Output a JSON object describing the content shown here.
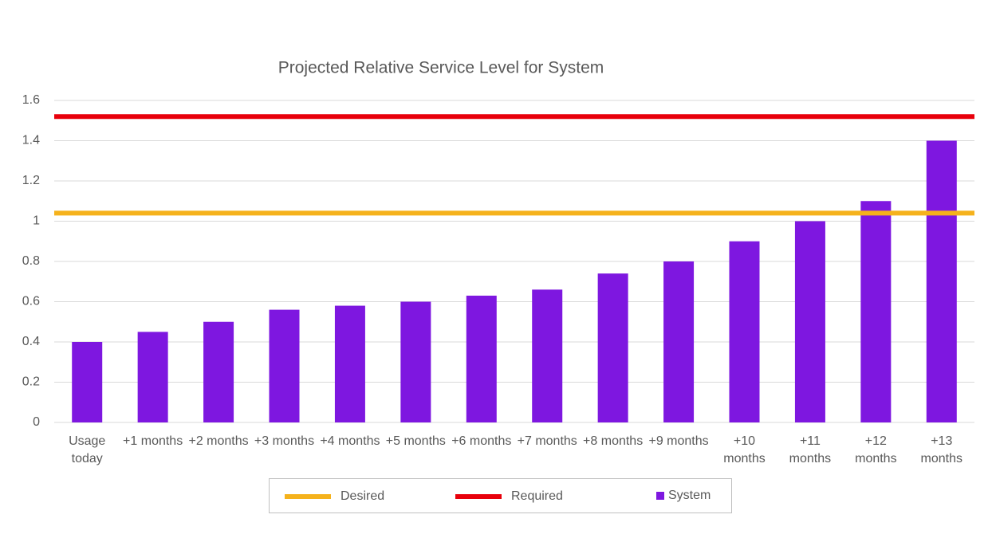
{
  "chart_data": {
    "type": "bar",
    "title": "Projected Relative Service Level for System",
    "categories": [
      "Usage today",
      "+1 months",
      "+2 months",
      "+3 months",
      "+4 months",
      "+5 months",
      "+6 months",
      "+7 months",
      "+8 months",
      "+9 months",
      "+10 months",
      "+11 months",
      "+12 months",
      "+13 months"
    ],
    "series": [
      {
        "name": "System",
        "color": "#7e17e0",
        "values": [
          0.4,
          0.45,
          0.5,
          0.56,
          0.58,
          0.6,
          0.63,
          0.66,
          0.74,
          0.8,
          0.9,
          1.0,
          1.1,
          1.4
        ]
      }
    ],
    "reference_lines": [
      {
        "name": "Desired",
        "value": 1.04,
        "color": "#f5b21c"
      },
      {
        "name": "Required",
        "value": 1.52,
        "color": "#e8000b"
      }
    ],
    "ylim": [
      0,
      1.6
    ],
    "yticks": [
      0,
      0.2,
      0.4,
      0.6,
      0.8,
      1,
      1.2,
      1.4,
      1.6
    ],
    "grid": true
  }
}
